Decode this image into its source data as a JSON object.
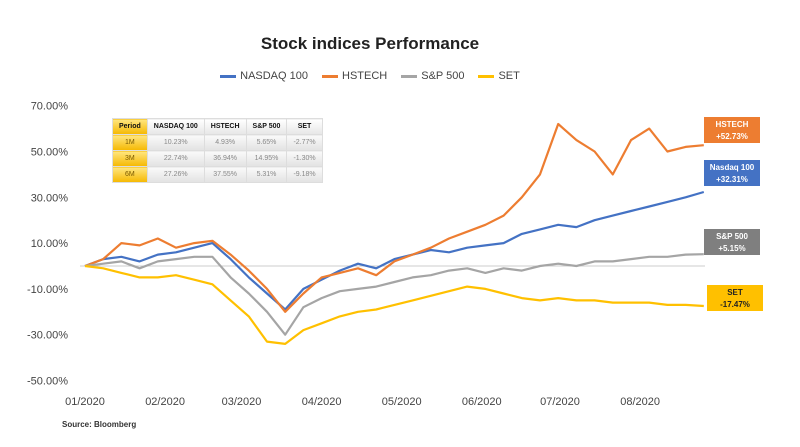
{
  "chart_data": {
    "type": "line",
    "title": "Stock indices Performance",
    "source": "Source: Bloomberg",
    "xlabel": "",
    "ylabel": "",
    "ylim": [
      -50,
      70
    ],
    "yticks": [
      "70.00%",
      "50.00%",
      "30.00%",
      "10.00%",
      "-10.00%",
      "-30.00%",
      "-50.00%"
    ],
    "ytick_values": [
      70,
      50,
      30,
      10,
      -10,
      -30,
      -50
    ],
    "xticks": [
      "01/2020",
      "02/2020",
      "03/2020",
      "04/2020",
      "05/2020",
      "06/2020",
      "07/2020",
      "08/2020"
    ],
    "xtick_weeks": [
      0,
      4.4,
      8.6,
      13,
      17.4,
      21.8,
      26.1,
      30.5
    ],
    "x_unit": "week index from start of Jan 2020",
    "series": [
      {
        "name": "NASDAQ 100",
        "color": "#4472C4",
        "values": [
          0,
          3,
          4,
          2,
          5,
          6,
          8,
          10,
          3,
          -5,
          -12,
          -19,
          -10,
          -6,
          -2,
          1,
          -1,
          3,
          5,
          7,
          6,
          8,
          9,
          10,
          14,
          16,
          18,
          17,
          20,
          22,
          24,
          26,
          28,
          30,
          32.31
        ]
      },
      {
        "name": "HSTECH",
        "color": "#ED7D31",
        "values": [
          0,
          3,
          10,
          9,
          12,
          8,
          10,
          11,
          5,
          -2,
          -10,
          -20,
          -12,
          -5,
          -3,
          -1,
          -4,
          2,
          5,
          8,
          12,
          15,
          18,
          22,
          30,
          40,
          62,
          55,
          50,
          40,
          55,
          60,
          50,
          52,
          52.73
        ]
      },
      {
        "name": "S&P 500",
        "color": "#A5A5A5",
        "values": [
          0,
          1,
          2,
          -1,
          2,
          3,
          4,
          4,
          -5,
          -12,
          -20,
          -30,
          -18,
          -14,
          -11,
          -10,
          -9,
          -7,
          -5,
          -4,
          -2,
          -1,
          -3,
          -1,
          -2,
          0,
          1,
          0,
          2,
          2,
          3,
          4,
          4,
          5,
          5.15
        ]
      },
      {
        "name": "SET",
        "color": "#FFC000",
        "values": [
          0,
          -1,
          -3,
          -5,
          -5,
          -4,
          -6,
          -8,
          -15,
          -22,
          -33,
          -34,
          -28,
          -25,
          -22,
          -20,
          -19,
          -17,
          -15,
          -13,
          -11,
          -9,
          -10,
          -12,
          -14,
          -15,
          -14,
          -15,
          -15,
          -16,
          -16,
          -16,
          -17,
          -17,
          -17.47
        ]
      }
    ],
    "end_labels": [
      {
        "name": "HSTECH",
        "value": "+52.73%",
        "color": "#ED7D31"
      },
      {
        "name": "Nasdaq 100",
        "value": "+32.31%",
        "color": "#4472C4"
      },
      {
        "name": "S&P 500",
        "value": "+5.15%",
        "color": "#7F7F7F"
      },
      {
        "name": "SET",
        "value": "-17.47%",
        "color": "#FFC000"
      }
    ],
    "table": {
      "headers": [
        "Period",
        "NASDAQ 100",
        "HSTECH",
        "S&P 500",
        "SET"
      ],
      "rows": [
        [
          "1M",
          "10.23%",
          "4.93%",
          "5.65%",
          "-2.77%"
        ],
        [
          "3M",
          "22.74%",
          "36.94%",
          "14.95%",
          "-1.30%"
        ],
        [
          "6M",
          "27.26%",
          "37.55%",
          "5.31%",
          "-9.18%"
        ]
      ]
    }
  }
}
